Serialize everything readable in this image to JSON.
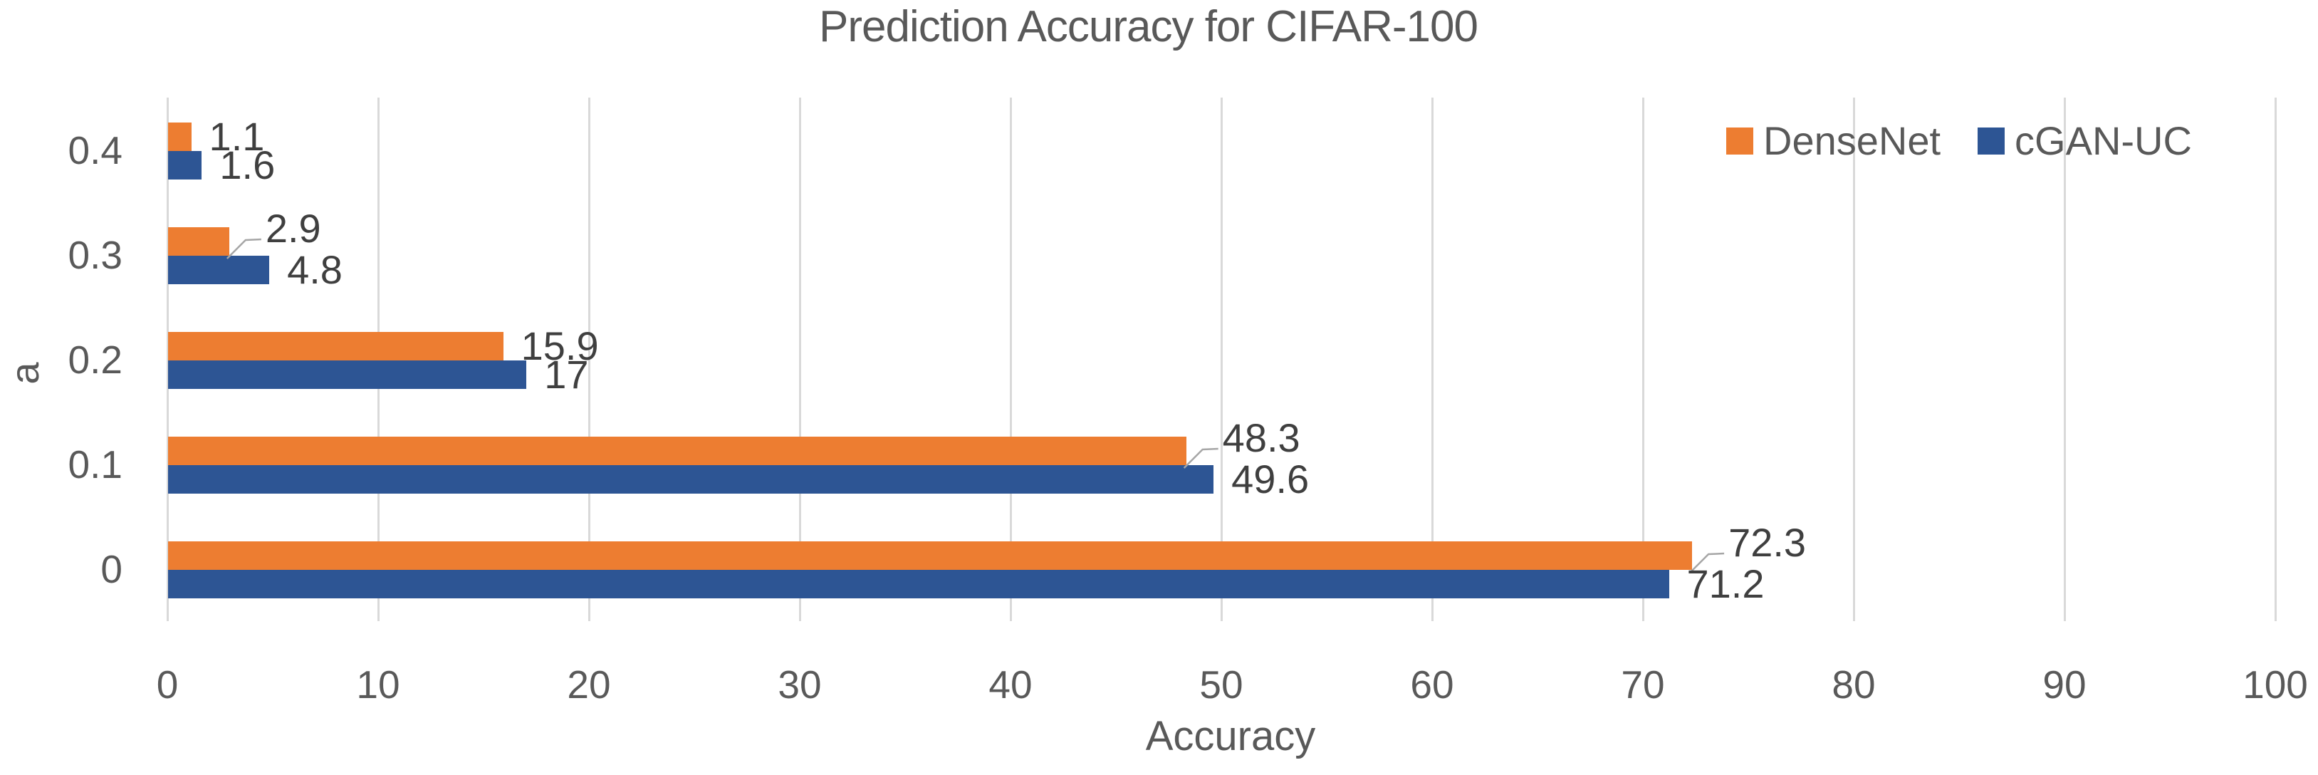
{
  "chart_data": {
    "type": "bar",
    "orientation": "horizontal",
    "title": "Prediction Accuracy for CIFAR-100",
    "xlabel": "Accuracy",
    "ylabel": "a",
    "categories": [
      "0.4",
      "0.3",
      "0.2",
      "0.1",
      "0"
    ],
    "series": [
      {
        "name": "DenseNet",
        "color": "#ED7D31",
        "values": [
          1.1,
          2.9,
          15.9,
          48.3,
          72.3
        ],
        "labels": [
          "1.1",
          "2.9",
          "15.9",
          "48.3",
          "72.3"
        ],
        "leader_label_indices": [
          1,
          3,
          4
        ]
      },
      {
        "name": "cGAN-UC",
        "color": "#2D5594",
        "values": [
          1.6,
          4.8,
          17,
          49.6,
          71.2
        ],
        "labels": [
          "1.6",
          "4.8",
          "17",
          "49.6",
          "71.2"
        ],
        "leader_label_indices": []
      }
    ],
    "xlim": [
      0,
      100
    ],
    "xticks": [
      0,
      10,
      20,
      30,
      40,
      50,
      60,
      70,
      80,
      90,
      100
    ],
    "grid": true,
    "legend_position": "top-right",
    "colors": {
      "gridline": "#D9D9D9",
      "axis_text": "#595959",
      "data_label": "#3F3F3F",
      "leader_line": "#A6A6A6",
      "background": "#FFFFFF"
    }
  }
}
